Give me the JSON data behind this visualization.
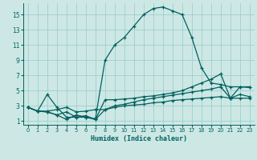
{
  "xlabel": "Humidex (Indice chaleur)",
  "bg_color": "#cde8e4",
  "grid_color": "#9ecece",
  "line_color": "#006060",
  "x_ticks": [
    0,
    1,
    2,
    3,
    4,
    5,
    6,
    7,
    8,
    9,
    10,
    11,
    12,
    13,
    14,
    15,
    16,
    17,
    18,
    19,
    20,
    21,
    22,
    23
  ],
  "y_ticks": [
    1,
    3,
    5,
    7,
    9,
    11,
    13,
    15
  ],
  "xlim": [
    -0.5,
    23.5
  ],
  "ylim": [
    0.5,
    16.5
  ],
  "series1_x": [
    0,
    1,
    2,
    3,
    4,
    5,
    6,
    7,
    8,
    9,
    10,
    11,
    12,
    13,
    14,
    15,
    16,
    17,
    18,
    19,
    20,
    21,
    22,
    23
  ],
  "series1_y": [
    2.8,
    2.3,
    4.5,
    2.8,
    1.5,
    1.5,
    1.5,
    1.3,
    9.0,
    11.0,
    12.0,
    13.5,
    15.0,
    15.8,
    16.0,
    15.5,
    15.0,
    12.0,
    8.0,
    6.0,
    5.8,
    5.5,
    5.5,
    5.4
  ],
  "series2_x": [
    0,
    1,
    2,
    3,
    4,
    5,
    6,
    7,
    8,
    9,
    10,
    11,
    12,
    13,
    14,
    15,
    16,
    17,
    18,
    19,
    20,
    21,
    22,
    23
  ],
  "series2_y": [
    2.8,
    2.3,
    2.2,
    1.8,
    1.2,
    1.8,
    1.5,
    1.2,
    3.8,
    3.8,
    3.9,
    4.0,
    4.2,
    4.3,
    4.5,
    4.7,
    5.0,
    5.5,
    6.0,
    6.5,
    7.2,
    4.0,
    5.5,
    5.5
  ],
  "series3_x": [
    0,
    1,
    2,
    3,
    4,
    5,
    6,
    7,
    8,
    9,
    10,
    11,
    12,
    13,
    14,
    15,
    16,
    17,
    18,
    19,
    20,
    21,
    22,
    23
  ],
  "series3_y": [
    2.8,
    2.3,
    2.2,
    1.8,
    2.2,
    1.5,
    1.7,
    1.2,
    2.5,
    3.0,
    3.2,
    3.5,
    3.8,
    4.0,
    4.2,
    4.4,
    4.6,
    4.8,
    5.0,
    5.2,
    5.5,
    4.0,
    4.5,
    4.2
  ],
  "series4_x": [
    0,
    1,
    2,
    3,
    4,
    5,
    6,
    7,
    8,
    9,
    10,
    11,
    12,
    13,
    14,
    15,
    16,
    17,
    18,
    19,
    20,
    21,
    22,
    23
  ],
  "series4_y": [
    2.8,
    2.3,
    2.3,
    2.5,
    2.8,
    2.2,
    2.3,
    2.5,
    2.5,
    2.8,
    3.0,
    3.1,
    3.2,
    3.4,
    3.5,
    3.7,
    3.8,
    3.9,
    4.0,
    4.1,
    4.2,
    4.0,
    4.0,
    4.0
  ]
}
